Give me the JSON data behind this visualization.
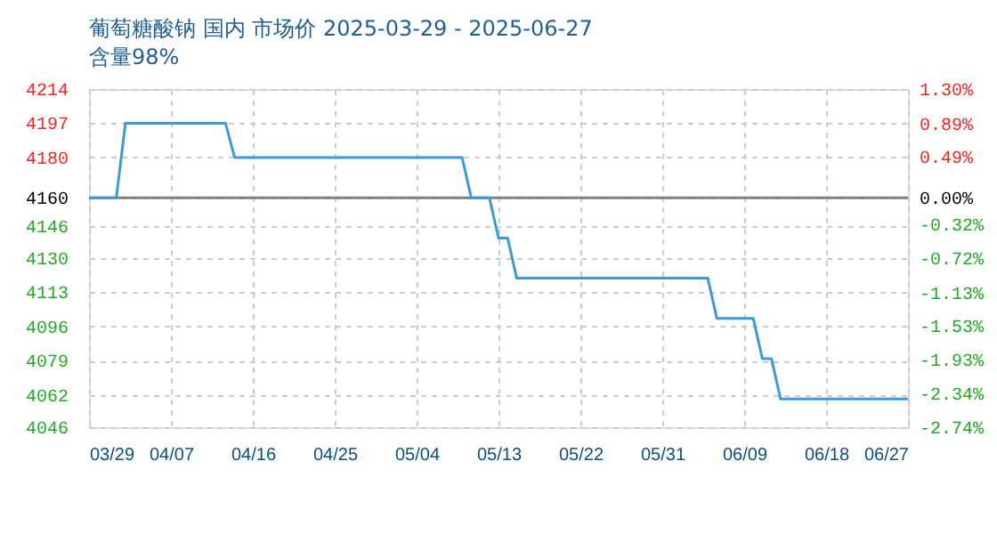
{
  "chart_data": {
    "type": "line",
    "title": "葡萄糖酸钠 国内 市场价 2025-03-29 - 2025-06-27",
    "subtitle": "含量98%",
    "series": [
      {
        "color": "#3d9ad9",
        "x": [
          "2025-03-29",
          "2025-04-01",
          "2025-04-02",
          "2025-04-13",
          "2025-04-14",
          "2025-05-09",
          "2025-05-10",
          "2025-05-12",
          "2025-05-13",
          "2025-05-14",
          "2025-05-15",
          "2025-06-05",
          "2025-06-06",
          "2025-06-10",
          "2025-06-11",
          "2025-06-12",
          "2025-06-13",
          "2025-06-27"
        ],
        "values": [
          4160,
          4160,
          4197,
          4197,
          4180,
          4180,
          4160,
          4160,
          4140,
          4140,
          4120,
          4120,
          4100,
          4100,
          4080,
          4080,
          4060,
          4060
        ]
      }
    ],
    "xlim": [
      "2025-03-29",
      "2025-06-27"
    ],
    "xticks": [
      {
        "value": "2025-03-29",
        "label": "03/29"
      },
      {
        "value": "2025-04-07",
        "label": "04/07"
      },
      {
        "value": "2025-04-16",
        "label": "04/16"
      },
      {
        "value": "2025-04-25",
        "label": "04/25"
      },
      {
        "value": "2025-05-04",
        "label": "05/04"
      },
      {
        "value": "2025-05-13",
        "label": "05/13"
      },
      {
        "value": "2025-05-22",
        "label": "05/22"
      },
      {
        "value": "2025-05-31",
        "label": "05/31"
      },
      {
        "value": "2025-06-09",
        "label": "06/09"
      },
      {
        "value": "2025-06-18",
        "label": "06/18"
      },
      {
        "value": "2025-06-27",
        "label": "06/27"
      }
    ],
    "ylim": [
      4046,
      4214
    ],
    "yticks": [
      4046,
      4062,
      4079,
      4096,
      4113,
      4130,
      4146,
      4160,
      4180,
      4197,
      4214
    ],
    "y2lim": [
      -2.74,
      1.3
    ],
    "y2ticks": [
      {
        "value": -2.74,
        "label": "-2.74%"
      },
      {
        "value": -2.34,
        "label": "-2.34%"
      },
      {
        "value": -1.93,
        "label": "-1.93%"
      },
      {
        "value": -1.53,
        "label": "-1.53%"
      },
      {
        "value": -1.13,
        "label": "-1.13%"
      },
      {
        "value": -0.72,
        "label": "-0.72%"
      },
      {
        "value": -0.32,
        "label": "-0.32%"
      },
      {
        "value": 0,
        "label": "0.00%"
      },
      {
        "value": 0.49,
        "label": "0.49%"
      },
      {
        "value": 0.89,
        "label": "0.89%"
      },
      {
        "value": 1.3,
        "label": "1.30%"
      }
    ],
    "ref_lines": [
      {
        "axis": "y",
        "value": 4160,
        "color": "#808080"
      }
    ],
    "grid": true,
    "marker": "none",
    "line_style": "solid"
  }
}
